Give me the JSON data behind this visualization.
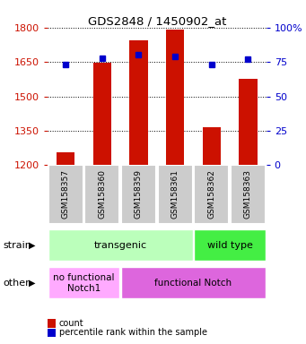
{
  "title": "GDS2848 / 1450902_at",
  "samples": [
    "GSM158357",
    "GSM158360",
    "GSM158359",
    "GSM158361",
    "GSM158362",
    "GSM158363"
  ],
  "counts": [
    1255,
    1645,
    1745,
    1790,
    1365,
    1575
  ],
  "percentiles": [
    73,
    78,
    80,
    79,
    73,
    77
  ],
  "ylim_left": [
    1200,
    1800
  ],
  "yticks_left": [
    1200,
    1350,
    1500,
    1650,
    1800
  ],
  "ylim_right": [
    0,
    100
  ],
  "yticks_right": [
    0,
    25,
    50,
    75,
    100
  ],
  "bar_color": "#cc1100",
  "dot_color": "#0000cc",
  "strain_labels": [
    {
      "text": "transgenic",
      "span": [
        0,
        4
      ],
      "color": "#bbffbb"
    },
    {
      "text": "wild type",
      "span": [
        4,
        6
      ],
      "color": "#44ee44"
    }
  ],
  "other_labels": [
    {
      "text": "no functional\nNotch1",
      "span": [
        0,
        2
      ],
      "color": "#ffaaff"
    },
    {
      "text": "functional Notch",
      "span": [
        2,
        6
      ],
      "color": "#dd66dd"
    }
  ],
  "strain_row_label": "strain",
  "other_row_label": "other",
  "legend_count_label": "count",
  "legend_pct_label": "percentile rank within the sample",
  "tick_label_color_left": "#cc1100",
  "tick_label_color_right": "#0000cc",
  "xlabel_bg_color": "#cccccc"
}
